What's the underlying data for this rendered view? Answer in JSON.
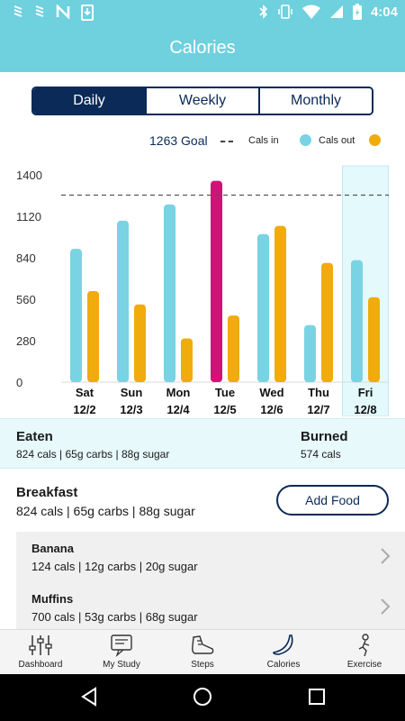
{
  "status_bar": {
    "time": "4:04",
    "icons": [
      "signal-icon",
      "signal-icon",
      "n-icon",
      "download-icon",
      "bluetooth-icon",
      "vibrate-icon",
      "wifi-icon",
      "signal-off-icon",
      "battery-icon"
    ]
  },
  "header": {
    "title": "Calories"
  },
  "segments": {
    "daily": "Daily",
    "weekly": "Weekly",
    "monthly": "Monthly",
    "selected": "Daily"
  },
  "legend": {
    "goal": "1263 Goal",
    "cals_in": "Cals in",
    "cals_out": "Cals out"
  },
  "colors": {
    "accent": "#6fd0de",
    "navy": "#0b2a57",
    "cals_in": "#79d3e2",
    "cals_out": "#f0ac0d",
    "over_goal": "#d21277"
  },
  "chart_data": {
    "type": "bar",
    "categories": [
      "Sat",
      "Sun",
      "Mon",
      "Tue",
      "Wed",
      "Thu",
      "Fri"
    ],
    "dates": [
      "12/2",
      "12/3",
      "12/4",
      "12/5",
      "12/6",
      "12/7",
      "12/8"
    ],
    "series": [
      {
        "name": "Cals in",
        "values": [
          900,
          1090,
          1200,
          1360,
          1000,
          385,
          824
        ]
      },
      {
        "name": "Cals out",
        "values": [
          615,
          525,
          295,
          450,
          1055,
          805,
          574
        ]
      }
    ],
    "goal": 1263,
    "highlighted_over_goal_index": 3,
    "selected_index": 6,
    "yticks": [
      0,
      280,
      560,
      840,
      1120,
      1400
    ],
    "ylim": [
      0,
      1400
    ],
    "grid": false,
    "legend_position": "top-right"
  },
  "summary": {
    "eaten_title": "Eaten",
    "eaten_detail": "824 cals | 65g carbs | 88g sugar",
    "burned_title": "Burned",
    "burned_detail": "574 cals"
  },
  "meal": {
    "title": "Breakfast",
    "detail": "824 cals | 65g carbs | 88g sugar",
    "add_label": "Add Food",
    "items": [
      {
        "name": "Banana",
        "detail": "124 cals | 12g carbs | 20g sugar"
      },
      {
        "name": "Muffins",
        "detail": "700 cals | 53g carbs | 68g sugar"
      }
    ]
  },
  "tabs": [
    {
      "label": "Dashboard",
      "icon": "sliders-icon"
    },
    {
      "label": "My Study",
      "icon": "study-icon"
    },
    {
      "label": "Steps",
      "icon": "shoe-icon"
    },
    {
      "label": "Calories",
      "icon": "banana-icon"
    },
    {
      "label": "Exercise",
      "icon": "exercise-icon"
    }
  ]
}
